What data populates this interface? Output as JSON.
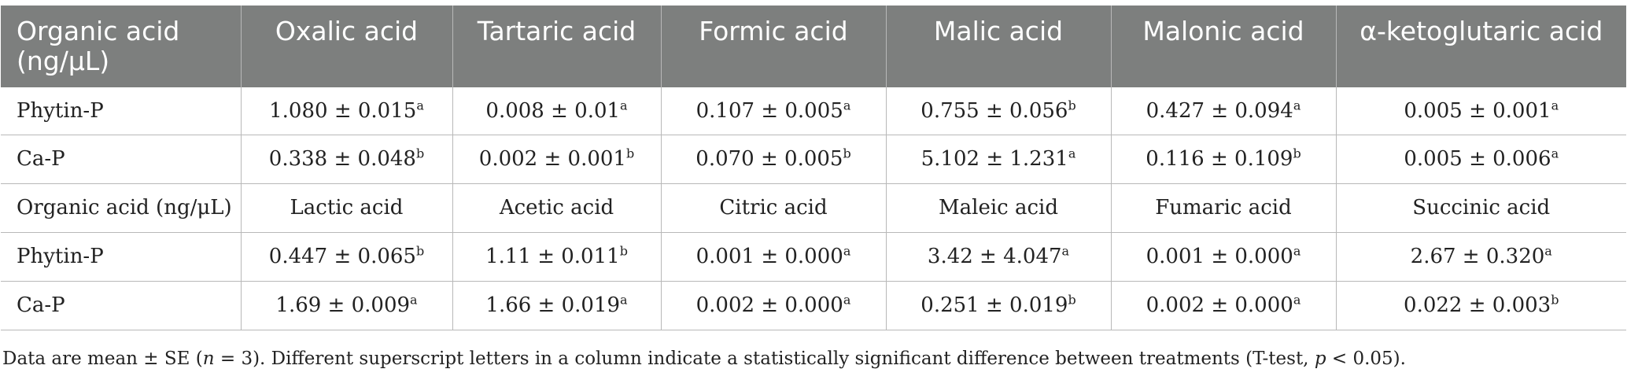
{
  "table": {
    "header": [
      "Organic acid (ng/μL)",
      "Oxalic acid",
      "Tartaric acid",
      "Formic acid",
      "Malic acid",
      "Malonic acid",
      "α-ketoglutaric acid"
    ],
    "rows": [
      {
        "label": "Phytin-P",
        "cells": [
          {
            "v": "1.080 ± 0.015",
            "s": "a"
          },
          {
            "v": "0.008 ± 0.01",
            "s": "a"
          },
          {
            "v": "0.107 ± 0.005",
            "s": "a"
          },
          {
            "v": "0.755 ± 0.056",
            "s": "b"
          },
          {
            "v": "0.427 ± 0.094",
            "s": "a"
          },
          {
            "v": "0.005 ± 0.001",
            "s": "a"
          }
        ]
      },
      {
        "label": "Ca-P",
        "cells": [
          {
            "v": "0.338 ± 0.048",
            "s": "b"
          },
          {
            "v": "0.002 ± 0.001",
            "s": "b"
          },
          {
            "v": "0.070 ± 0.005",
            "s": "b"
          },
          {
            "v": "5.102 ± 1.231",
            "s": "a"
          },
          {
            "v": "0.116 ± 0.109",
            "s": "b"
          },
          {
            "v": "0.005 ± 0.006",
            "s": "a"
          }
        ]
      },
      {
        "label": "Organic acid (ng/μL)",
        "cells": [
          {
            "v": "Lactic acid",
            "s": ""
          },
          {
            "v": "Acetic acid",
            "s": ""
          },
          {
            "v": "Citric acid",
            "s": ""
          },
          {
            "v": "Maleic acid",
            "s": ""
          },
          {
            "v": "Fumaric acid",
            "s": ""
          },
          {
            "v": "Succinic acid",
            "s": ""
          }
        ]
      },
      {
        "label": "Phytin-P",
        "cells": [
          {
            "v": "0.447 ± 0.065",
            "s": "b"
          },
          {
            "v": "1.11 ± 0.011",
            "s": "b"
          },
          {
            "v": "0.001 ± 0.000",
            "s": "a"
          },
          {
            "v": "3.42 ± 4.047",
            "s": "a"
          },
          {
            "v": "0.001 ± 0.000",
            "s": "a"
          },
          {
            "v": "2.67 ± 0.320",
            "s": "a"
          }
        ]
      },
      {
        "label": "Ca-P",
        "cells": [
          {
            "v": "1.69 ± 0.009",
            "s": "a"
          },
          {
            "v": "1.66 ± 0.019",
            "s": "a"
          },
          {
            "v": "0.002 ± 0.000",
            "s": "a"
          },
          {
            "v": "0.251 ± 0.019",
            "s": "b"
          },
          {
            "v": "0.002 ± 0.000",
            "s": "a"
          },
          {
            "v": "0.022 ± 0.003",
            "s": "b"
          }
        ]
      }
    ]
  },
  "footnote": {
    "part1": "Data are mean ± SE (",
    "n_symbol": "n",
    "part2": " = 3). Different superscript letters in a column indicate a statistically significant difference between treatments (T-test, ",
    "p_symbol": "p",
    "part3": " < 0.05)."
  },
  "colors": {
    "header_bg": "#7d7f7e",
    "header_text": "#ffffff",
    "grid": "#b8b8b8"
  }
}
